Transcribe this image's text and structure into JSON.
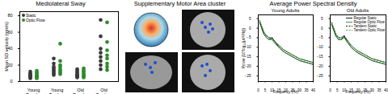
{
  "chart_data": [
    {
      "type": "scatter",
      "title": "Mediolateral Sway",
      "categories": [
        "Young\nRegular",
        "Young\nTandem",
        "Old\nRegular",
        "Old\nTandem"
      ],
      "y_label": "Mean SD velocity (mm/s)",
      "ylim": [
        0,
        85
      ],
      "yticks": [
        0,
        20,
        40,
        60,
        80
      ],
      "grid": false,
      "legend": "top-left",
      "series": [
        {
          "name": "Static",
          "color": "#3a3a3a",
          "marker": "circle",
          "values": [
            [
              4,
              5,
              6,
              7,
              8,
              9,
              10,
              12
            ],
            [
              8,
              10,
              12,
              14,
              16,
              18,
              22,
              28
            ],
            [
              5,
              6,
              7,
              8,
              9,
              11,
              13,
              15
            ],
            [
              15,
              20,
              25,
              30,
              35,
              40,
              55,
              75
            ]
          ]
        },
        {
          "name": "Optic Flow",
          "color": "#2e8b2e",
          "marker": "circle",
          "values": [
            [
              4,
              5,
              6,
              7,
              8,
              10,
              11,
              13
            ],
            [
              9,
              11,
              13,
              15,
              18,
              20,
              25,
              46
            ],
            [
              5,
              6,
              7,
              8,
              10,
              12,
              14,
              16
            ],
            [
              14,
              18,
              22,
              28,
              32,
              38,
              48,
              72
            ]
          ]
        }
      ]
    },
    {
      "type": "image",
      "title": "Supplementary Motor Area cluster"
    },
    {
      "type": "line",
      "title": "Average Power Spectral Density",
      "y_label": "Power (10*log₁₀(μV²/Hz))",
      "x_label": "Frequency (Hz)",
      "x": [
        1,
        2,
        3,
        4,
        5,
        6,
        8,
        10,
        12,
        15,
        18,
        20,
        25,
        30,
        35,
        40
      ],
      "xlim": [
        0,
        40
      ],
      "xticks": [
        0,
        5,
        10,
        15,
        20,
        25,
        30,
        35,
        40
      ],
      "ylim": [
        -28,
        7
      ],
      "yticks": [
        -25,
        -20,
        -15,
        -10,
        -5,
        0,
        5
      ],
      "grid": false,
      "panels": [
        {
          "subtitle": "Young Adults",
          "series": [
            {
              "name": "Regular Static",
              "color": "#000000",
              "line_style": "solid",
              "values": [
                3,
                1,
                -1,
                -3,
                -4,
                -5,
                -6,
                -5,
                -7,
                -10,
                -12,
                -13,
                -15,
                -17,
                -18,
                -19
              ]
            },
            {
              "name": "Regular Optic Flow",
              "color": "#2e8b2e",
              "line_style": "solid",
              "values": [
                3,
                1,
                -1,
                -3,
                -4,
                -5,
                -6,
                -6,
                -8,
                -10,
                -12,
                -13,
                -15,
                -17,
                -18,
                -19
              ]
            },
            {
              "name": "Tandem Static",
              "color": "#000000",
              "line_style": "dashed",
              "values": [
                4,
                2,
                0,
                -2,
                -3,
                -4,
                -5,
                -5,
                -7,
                -9,
                -11,
                -12,
                -14,
                -16,
                -17,
                -18
              ]
            },
            {
              "name": "Tandem Optic Flow",
              "color": "#2e8b2e",
              "line_style": "dashed",
              "values": [
                4,
                2,
                0,
                -2,
                -3,
                -4,
                -5,
                -6,
                -7,
                -9,
                -11,
                -12,
                -14,
                -16,
                -17,
                -18
              ]
            }
          ]
        },
        {
          "subtitle": "Old Adults",
          "legend": "top-right",
          "series": [
            {
              "name": "Regular Static",
              "color": "#000000",
              "line_style": "solid",
              "values": [
                2,
                0,
                -2,
                -4,
                -5,
                -6,
                -6,
                -4,
                -7,
                -10,
                -12,
                -13,
                -15,
                -17,
                -18,
                -19
              ]
            },
            {
              "name": "Regular Optic Flow",
              "color": "#2e8b2e",
              "line_style": "solid",
              "values": [
                2,
                0,
                -2,
                -4,
                -5,
                -6,
                -6,
                -5,
                -7,
                -10,
                -12,
                -13,
                -15,
                -17,
                -18,
                -19
              ]
            },
            {
              "name": "Tandem Static",
              "color": "#000000",
              "line_style": "dashed",
              "values": [
                3,
                1,
                -1,
                -3,
                -4,
                -5,
                -5,
                -4,
                -6,
                -9,
                -11,
                -12,
                -14,
                -16,
                -17,
                -18
              ]
            },
            {
              "name": "Tandem Optic Flow",
              "color": "#2e8b2e",
              "line_style": "dashed",
              "values": [
                3,
                1,
                -1,
                -3,
                -4,
                -5,
                -5,
                -5,
                -6,
                -9,
                -11,
                -12,
                -14,
                -16,
                -17,
                -18
              ]
            }
          ]
        }
      ]
    }
  ]
}
